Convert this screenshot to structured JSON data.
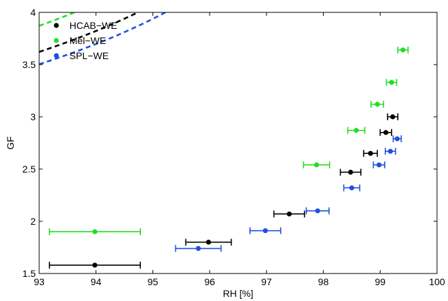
{
  "chart_data": {
    "type": "scatter",
    "xlabel": "RH [%]",
    "ylabel": "GF",
    "xlim": [
      93,
      100
    ],
    "ylim": [
      1.5,
      4
    ],
    "xticks": [
      93,
      94,
      95,
      96,
      97,
      98,
      99,
      100
    ],
    "xtick_labels": [
      "93",
      "94",
      "95",
      "96",
      "97",
      "98",
      "99",
      "100"
    ],
    "yticks": [
      1.5,
      2,
      2.5,
      3,
      3.5,
      4
    ],
    "ytick_labels": [
      "1.5",
      "2",
      "2.5",
      "3",
      "3.5",
      "4"
    ],
    "grid": false,
    "legend_position": "top-left",
    "series": [
      {
        "name": "HCAB−WE",
        "color": "#000000",
        "points": [
          {
            "x": 93.98,
            "y": 1.58,
            "xerr": 0.8
          },
          {
            "x": 95.98,
            "y": 1.8,
            "xerr": 0.4
          },
          {
            "x": 97.4,
            "y": 2.07,
            "xerr": 0.27
          },
          {
            "x": 98.48,
            "y": 2.47,
            "xerr": 0.18
          },
          {
            "x": 98.83,
            "y": 2.65,
            "xerr": 0.12
          },
          {
            "x": 99.1,
            "y": 2.85,
            "xerr": 0.1
          },
          {
            "x": 99.22,
            "y": 3.0,
            "xerr": 0.09
          }
        ],
        "fit": {
          "a": 1.75,
          "b": 0.2
        }
      },
      {
        "name": "Mel−WE",
        "color": "#22dd22",
        "points": [
          {
            "x": 93.98,
            "y": 1.9,
            "xerr": 0.8
          },
          {
            "x": 97.88,
            "y": 2.54,
            "xerr": 0.23
          },
          {
            "x": 98.58,
            "y": 2.87,
            "xerr": 0.15
          },
          {
            "x": 98.95,
            "y": 3.12,
            "xerr": 0.11
          },
          {
            "x": 99.2,
            "y": 3.33,
            "xerr": 0.09
          },
          {
            "x": 99.4,
            "y": 3.64,
            "xerr": 0.09
          }
        ],
        "fit": {
          "a": 1.16,
          "b": 0.37
        }
      },
      {
        "name": "SPL−WE",
        "color": "#1f4fe0",
        "points": [
          {
            "x": 95.8,
            "y": 1.74,
            "xerr": 0.4
          },
          {
            "x": 96.98,
            "y": 1.91,
            "xerr": 0.27
          },
          {
            "x": 97.9,
            "y": 2.1,
            "xerr": 0.2
          },
          {
            "x": 98.5,
            "y": 2.32,
            "xerr": 0.14
          },
          {
            "x": 98.98,
            "y": 2.54,
            "xerr": 0.1
          },
          {
            "x": 99.18,
            "y": 2.67,
            "xerr": 0.09
          },
          {
            "x": 99.3,
            "y": 2.79,
            "xerr": 0.07
          }
        ],
        "fit": {
          "a": 1.7,
          "b": 0.186
        }
      }
    ]
  }
}
